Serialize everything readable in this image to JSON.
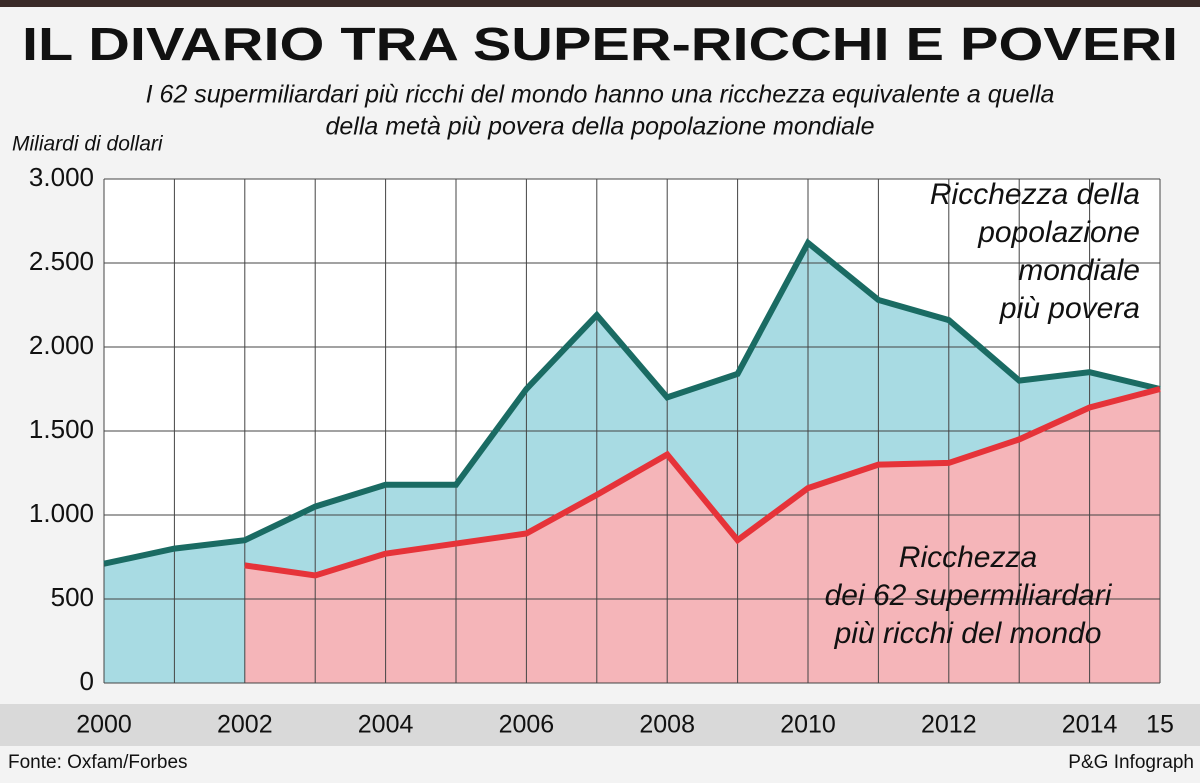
{
  "chart_data": {
    "type": "line",
    "title": "IL DIVARIO TRA SUPER-RICCHI E POVERI",
    "subtitle": [
      "I 62 supermiliardari più ricchi del mondo hanno una ricchezza equivalente a quella",
      "della metà più povera della popolazione mondiale"
    ],
    "y_axis_label": "Miliardi di dollari",
    "x": [
      2000,
      2001,
      2002,
      2003,
      2004,
      2005,
      2006,
      2007,
      2008,
      2009,
      2010,
      2011,
      2012,
      2013,
      2014,
      2015
    ],
    "series": [
      {
        "name": "Ricchezza della popolazione mondiale più povera",
        "color": "#1a6b63",
        "fill": "#a8dbe3",
        "values": [
          710,
          800,
          850,
          1050,
          1180,
          1180,
          1750,
          2190,
          1700,
          1840,
          2620,
          2280,
          2160,
          1800,
          1850,
          1750
        ]
      },
      {
        "name": "Ricchezza dei 62 supermiliardari più ricchi del mondo",
        "color": "#e63339",
        "fill": "#f5b5b9",
        "values": [
          null,
          null,
          700,
          640,
          770,
          830,
          890,
          1120,
          1360,
          850,
          1160,
          1300,
          1310,
          1450,
          1640,
          1750
        ]
      }
    ],
    "annotations": [
      {
        "lines": [
          "Ricchezza della",
          "popolazione",
          "mondiale",
          "più povera"
        ]
      },
      {
        "lines": [
          "Ricchezza",
          "dei 62 supermiliardari",
          "più ricchi del mondo"
        ]
      }
    ],
    "xlim": [
      2000,
      2015
    ],
    "xticks": [
      2000,
      2002,
      2004,
      2006,
      2008,
      2010,
      2012,
      2014,
      {
        "value": 2015,
        "label": "15"
      }
    ],
    "ylim": [
      0,
      3000
    ],
    "yticks": [
      0,
      500,
      {
        "value": 1000,
        "label": "1.000"
      },
      {
        "value": 1500,
        "label": "1.500"
      },
      {
        "value": 2000,
        "label": "2.000"
      },
      {
        "value": 2500,
        "label": "2.500"
      },
      {
        "value": 3000,
        "label": "3.000"
      }
    ],
    "grid": true,
    "source": "Fonte: Oxfam/Forbes",
    "credit": "P&G Infograph"
  }
}
